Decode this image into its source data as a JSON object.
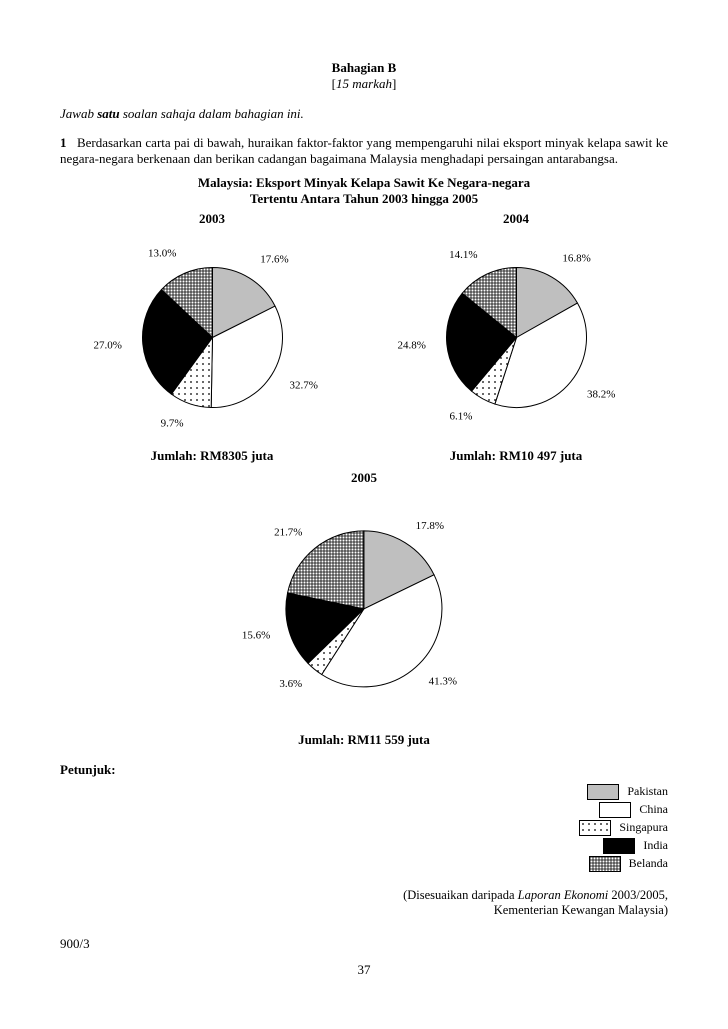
{
  "header": {
    "section": "Bahagian B",
    "marks": "[15 markah]"
  },
  "instruction_prefix": "Jawab ",
  "instruction_bold": "satu",
  "instruction_suffix": " soalan sahaja dalam bahagian ini.",
  "question": {
    "num": "1",
    "text": "Berdasarkan carta pai di bawah, huraikan faktor-faktor yang mempengaruhi nilai eksport minyak kelapa sawit ke negara-negara berkenaan dan berikan cadangan bagaimana Malaysia menghadapi persaingan antarabangsa."
  },
  "chart_heading_l1": "Malaysia: Eksport Minyak Kelapa Sawit Ke Negara-negara",
  "chart_heading_l2": "Tertentu Antara Tahun 2003 hingga 2005",
  "patterns": {
    "pakistan": {
      "label": "Pakistan",
      "fill": "#bfbfbf"
    },
    "china": {
      "label": "China",
      "fill": "#ffffff"
    },
    "singapura": {
      "label": "Singapura",
      "fill": "url(#dots)"
    },
    "india": {
      "label": "India",
      "fill": "#000000"
    },
    "belanda": {
      "label": "Belanda",
      "fill": "url(#hatch)"
    }
  },
  "charts": [
    {
      "year": "2003",
      "total": "Jumlah: RM8305 juta",
      "radius": 70,
      "start_angle": -90,
      "label_offset": 1.3,
      "slices": [
        {
          "key": "pakistan",
          "value": 17.6,
          "label": "17.6%"
        },
        {
          "key": "china",
          "value": 32.7,
          "label": "32.7%"
        },
        {
          "key": "singapura",
          "value": 9.7,
          "label": "9.7%"
        },
        {
          "key": "india",
          "value": 27.0,
          "label": "27.0%"
        },
        {
          "key": "belanda",
          "value": 13.0,
          "label": "13.0%"
        }
      ]
    },
    {
      "year": "2004",
      "total": "Jumlah: RM10 497 juta",
      "radius": 70,
      "start_angle": -90,
      "label_offset": 1.3,
      "slices": [
        {
          "key": "pakistan",
          "value": 16.8,
          "label": "16.8%"
        },
        {
          "key": "china",
          "value": 38.2,
          "label": "38.2%"
        },
        {
          "key": "singapura",
          "value": 6.1,
          "label": "6.1%"
        },
        {
          "key": "india",
          "value": 24.8,
          "label": "24.8%"
        },
        {
          "key": "belanda",
          "value": 14.1,
          "label": "14.1%"
        }
      ]
    },
    {
      "year": "2005",
      "total": "Jumlah: RM11 559 juta",
      "radius": 78,
      "start_angle": -90,
      "label_offset": 1.25,
      "slices": [
        {
          "key": "pakistan",
          "value": 17.8,
          "label": "17.8%"
        },
        {
          "key": "china",
          "value": 41.3,
          "label": "41.3%"
        },
        {
          "key": "singapura",
          "value": 3.6,
          "label": "3.6%"
        },
        {
          "key": "india",
          "value": 15.6,
          "label": "15.6%"
        },
        {
          "key": "belanda",
          "value": 21.7,
          "label": "21.7%"
        }
      ]
    }
  ],
  "legend_title": "Petunjuk:",
  "legend_order": [
    "pakistan",
    "china",
    "singapura",
    "india",
    "belanda"
  ],
  "source_l1_pre": "(Disesuaikan daripada ",
  "source_l1_it": "Laporan Ekonomi",
  "source_l1_post": " 2003/2005,",
  "source_l2": "Kementerian Kewangan Malaysia)",
  "paper_code": "900/3",
  "page_number": "37",
  "stroke_color": "#000000",
  "label_fontsize": 11
}
